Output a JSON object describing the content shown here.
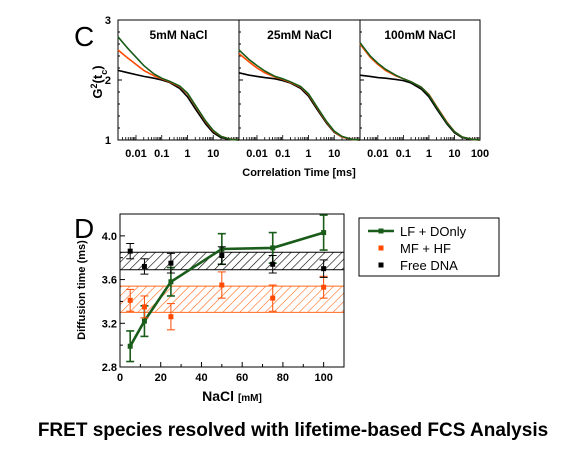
{
  "caption": "FRET species resolved with lifetime-based FCS Analysis",
  "chart_data": [
    {
      "panel_label": "C",
      "type": "line",
      "ylabel": "G²(tc)",
      "ylabel_main": "G",
      "ylabel_sup": "2",
      "ylabel_paren_open": "(t",
      "ylabel_sub": "c",
      "ylabel_paren_close": ")",
      "xlabel": "Correlation Time [ms]",
      "xscale": "log",
      "xlim": [
        0.002,
        100
      ],
      "ylim": [
        1,
        3
      ],
      "yticks": [
        "1",
        "2",
        "3"
      ],
      "xticks": [
        "0.01",
        "0.1",
        "1",
        "10",
        "100"
      ],
      "colors": {
        "lf_donly": "#1a5c1a",
        "mf_hf": "#ff4a00",
        "free_dna": "#000000"
      },
      "subplots": [
        {
          "title": "5mM NaCl",
          "series": [
            {
              "key": "lf_donly",
              "x": [
                0.002,
                0.005,
                0.01,
                0.02,
                0.05,
                0.1,
                0.2,
                0.5,
                1,
                2,
                5,
                10,
                20,
                50,
                100
              ],
              "y": [
                2.72,
                2.52,
                2.38,
                2.24,
                2.1,
                2.03,
                1.98,
                1.9,
                1.78,
                1.58,
                1.32,
                1.16,
                1.06,
                1.01,
                1.0
              ]
            },
            {
              "key": "mf_hf",
              "x": [
                0.002,
                0.005,
                0.01,
                0.02,
                0.05,
                0.1,
                0.2,
                0.5,
                1,
                2,
                5,
                10,
                20,
                50,
                100
              ],
              "y": [
                2.5,
                2.36,
                2.26,
                2.16,
                2.07,
                2.02,
                1.97,
                1.89,
                1.77,
                1.57,
                1.31,
                1.15,
                1.06,
                1.01,
                1.0
              ]
            },
            {
              "key": "free_dna",
              "x": [
                0.002,
                0.005,
                0.01,
                0.02,
                0.05,
                0.1,
                0.2,
                0.5,
                1,
                2,
                5,
                10,
                20,
                50,
                100
              ],
              "y": [
                2.16,
                2.12,
                2.09,
                2.06,
                2.03,
                2.0,
                1.96,
                1.86,
                1.72,
                1.52,
                1.27,
                1.12,
                1.04,
                1.01,
                1.0
              ]
            }
          ]
        },
        {
          "title": "25mM NaCl",
          "series": [
            {
              "key": "lf_donly",
              "x": [
                0.002,
                0.005,
                0.01,
                0.02,
                0.05,
                0.1,
                0.2,
                0.5,
                1,
                2,
                5,
                10,
                20,
                50,
                100
              ],
              "y": [
                2.5,
                2.34,
                2.24,
                2.15,
                2.06,
                2.02,
                1.97,
                1.89,
                1.77,
                1.57,
                1.31,
                1.15,
                1.06,
                1.01,
                1.0
              ]
            },
            {
              "key": "mf_hf",
              "x": [
                0.002,
                0.005,
                0.01,
                0.02,
                0.05,
                0.1,
                0.2,
                0.5,
                1,
                2,
                5,
                10,
                20,
                50,
                100
              ],
              "y": [
                2.44,
                2.3,
                2.2,
                2.12,
                2.05,
                2.01,
                1.96,
                1.88,
                1.76,
                1.56,
                1.3,
                1.14,
                1.05,
                1.01,
                1.0
              ]
            },
            {
              "key": "free_dna",
              "x": [
                0.002,
                0.005,
                0.01,
                0.02,
                0.05,
                0.1,
                0.2,
                0.5,
                1,
                2,
                5,
                10,
                20,
                50,
                100
              ],
              "y": [
                2.12,
                2.08,
                2.06,
                2.04,
                2.02,
                1.99,
                1.95,
                1.86,
                1.73,
                1.53,
                1.28,
                1.13,
                1.05,
                1.01,
                1.0
              ]
            }
          ]
        },
        {
          "title": "100mM NaCl",
          "series": [
            {
              "key": "lf_donly",
              "x": [
                0.002,
                0.005,
                0.01,
                0.02,
                0.05,
                0.1,
                0.2,
                0.5,
                1,
                2,
                5,
                10,
                20,
                50,
                100
              ],
              "y": [
                2.62,
                2.4,
                2.28,
                2.18,
                2.08,
                2.02,
                1.97,
                1.88,
                1.75,
                1.55,
                1.29,
                1.14,
                1.05,
                1.01,
                1.0
              ]
            },
            {
              "key": "mf_hf",
              "x": [
                0.002,
                0.005,
                0.01,
                0.02,
                0.05,
                0.1,
                0.2,
                0.5,
                1,
                2,
                5,
                10,
                20,
                50,
                100
              ],
              "y": [
                2.6,
                2.38,
                2.26,
                2.16,
                2.07,
                2.02,
                1.97,
                1.88,
                1.76,
                1.56,
                1.3,
                1.14,
                1.05,
                1.01,
                1.0
              ]
            },
            {
              "key": "free_dna",
              "x": [
                0.002,
                0.005,
                0.01,
                0.02,
                0.05,
                0.1,
                0.2,
                0.5,
                1,
                2,
                5,
                10,
                20,
                50,
                100
              ],
              "y": [
                2.08,
                2.06,
                2.04,
                2.03,
                2.01,
                1.99,
                1.95,
                1.85,
                1.72,
                1.52,
                1.27,
                1.12,
                1.04,
                1.01,
                1.0
              ]
            }
          ]
        }
      ]
    },
    {
      "panel_label": "D",
      "type": "scatter",
      "xlabel": "NaCl",
      "xunit": "[mM]",
      "ylabel": "Diffusion time (ms)",
      "xlim": [
        0,
        110
      ],
      "ylim": [
        2.8,
        4.2
      ],
      "xticks": [
        "0",
        "20",
        "40",
        "60",
        "80",
        "100"
      ],
      "yticks": [
        "2.8",
        "3.2",
        "3.6",
        "4.0"
      ],
      "bands": [
        {
          "key": "free_dna",
          "ymin": 3.69,
          "ymax": 3.85,
          "color": "#000000"
        },
        {
          "key": "mf_hf",
          "ymin": 3.3,
          "ymax": 3.54,
          "color": "#ff6a1a"
        }
      ],
      "series": [
        {
          "key": "lf_donly",
          "name": "LF + DOnly",
          "color": "#1a5c1a",
          "connected": true,
          "x": [
            5,
            12,
            25,
            50,
            75,
            100
          ],
          "y": [
            2.99,
            3.22,
            3.58,
            3.88,
            3.89,
            4.03
          ],
          "err": [
            0.14,
            0.14,
            0.13,
            0.14,
            0.14,
            0.16
          ]
        },
        {
          "key": "mf_hf",
          "name": "MF + HF",
          "color": "#ff4a00",
          "connected": false,
          "x": [
            5,
            12,
            25,
            50,
            75,
            100
          ],
          "y": [
            3.41,
            3.35,
            3.26,
            3.55,
            3.43,
            3.53
          ],
          "err": [
            0.1,
            0.1,
            0.12,
            0.12,
            0.12,
            0.1
          ]
        },
        {
          "key": "free_dna",
          "name": "Free DNA",
          "color": "#000000",
          "connected": false,
          "x": [
            5,
            12,
            25,
            50,
            75,
            100
          ],
          "y": [
            3.86,
            3.72,
            3.75,
            3.82,
            3.74,
            3.7
          ],
          "err": [
            0.07,
            0.07,
            0.09,
            0.08,
            0.08,
            0.08
          ]
        }
      ],
      "legend_position": "right"
    }
  ]
}
